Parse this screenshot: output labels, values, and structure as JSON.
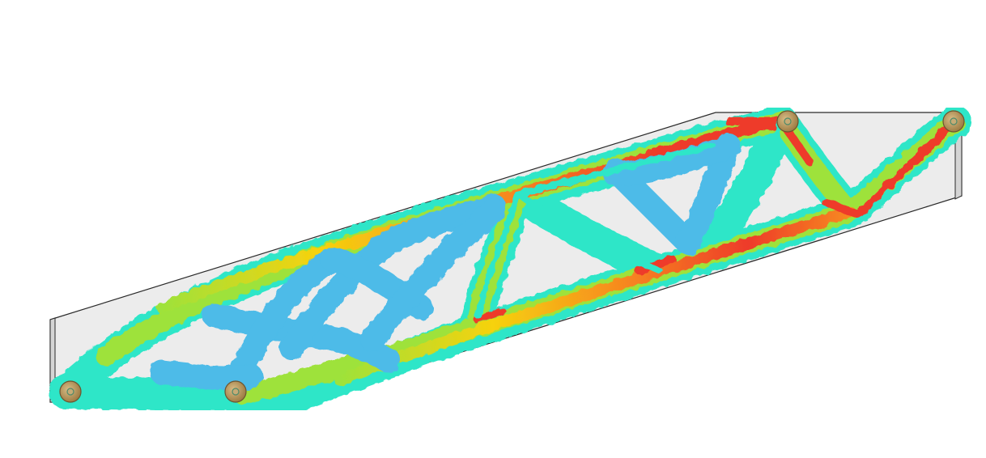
{
  "scene": {
    "background_color": "#ffffff",
    "plate_color": "#ececec",
    "plate_edge_color": "#2a2a2a",
    "stress_colors": {
      "low": "#4dbbe8",
      "mid_low": "#2ee6c8",
      "mid": "#9ee23a",
      "mid_high": "#f6d20e",
      "high": "#f78a1f",
      "peak": "#ee3b2a"
    },
    "support_color": "#c2a16a",
    "support_icon": "pin-support-icon"
  }
}
